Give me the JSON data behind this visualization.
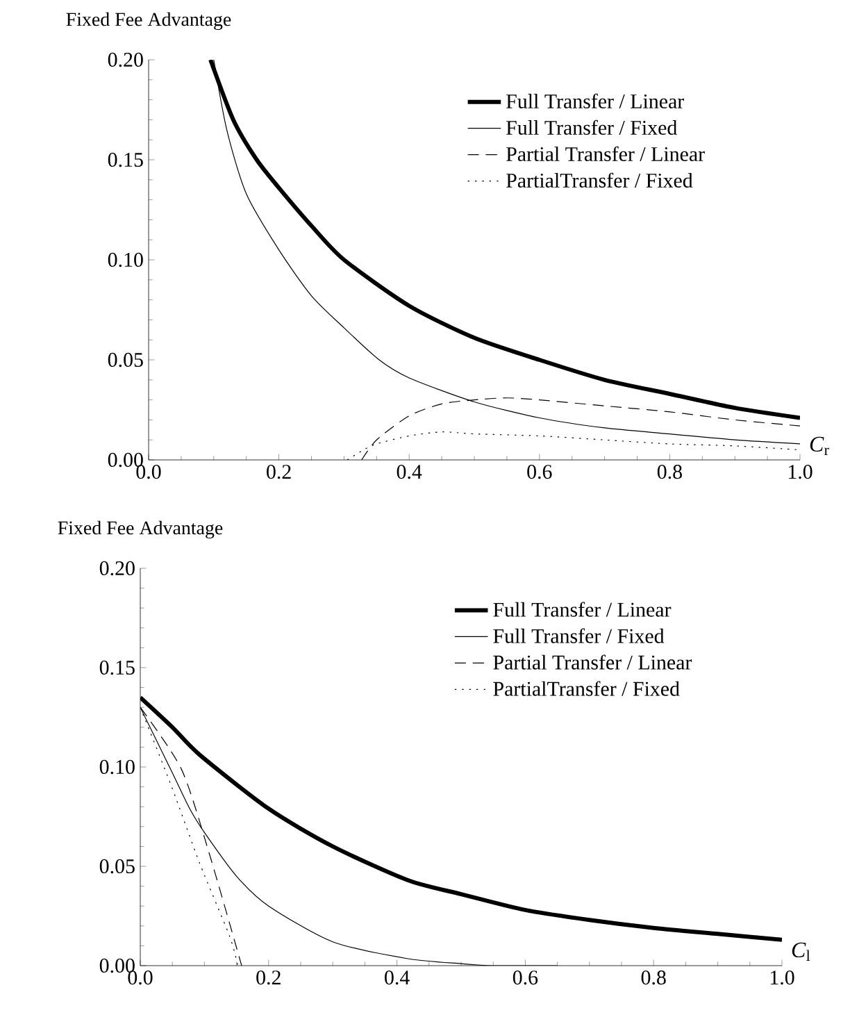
{
  "chart_data": [
    {
      "type": "line",
      "ylabel": "Fixed Fee Advantage",
      "xlabel": "*C*$_{r}$",
      "xlim": [
        0,
        1
      ],
      "ylim": [
        0,
        0.2
      ],
      "xticks": [
        {
          "value": 0,
          "label": "0.0"
        },
        {
          "value": 0.2,
          "label": "0.2"
        },
        {
          "value": 0.4,
          "label": "0.4"
        },
        {
          "value": 0.6,
          "label": "0.6"
        },
        {
          "value": 0.8,
          "label": "0.8"
        },
        {
          "value": 1,
          "label": "1.0"
        }
      ],
      "yticks": [
        {
          "value": 0,
          "label": "0.00"
        },
        {
          "value": 0.05,
          "label": "0.05"
        },
        {
          "value": 0.1,
          "label": "0.10"
        },
        {
          "value": 0.15,
          "label": "0.15"
        },
        {
          "value": 0.2,
          "label": "0.20"
        }
      ],
      "legend": "top right",
      "series": [
        {
          "name": "Full Transfer / Linear",
          "color": "#000000",
          "line_style": "solid",
          "x": [
            0.095,
            0.13,
            0.166,
            0.2,
            0.25,
            0.3,
            0.4,
            0.5,
            0.6,
            0.7,
            0.8,
            0.9,
            1.0
          ],
          "values": [
            0.2,
            0.17,
            0.15,
            0.136,
            0.117,
            0.1,
            0.077,
            0.061,
            0.05,
            0.04,
            0.033,
            0.026,
            0.021
          ]
        },
        {
          "name": "Full Transfer / Fixed",
          "color": "#000000",
          "line_style": "solid",
          "x": [
            0.1,
            0.12,
            0.15,
            0.2,
            0.25,
            0.3,
            0.354,
            0.4,
            0.5,
            0.6,
            0.7,
            0.8,
            0.9,
            1.0
          ],
          "values": [
            0.2,
            0.165,
            0.133,
            0.105,
            0.082,
            0.066,
            0.05,
            0.041,
            0.029,
            0.021,
            0.016,
            0.013,
            0.01,
            0.008
          ]
        },
        {
          "name": "Partial Transfer / Linear",
          "color": "#000000",
          "line_style": "dashed",
          "x": [
            0.327,
            0.35,
            0.4,
            0.45,
            0.5,
            0.55,
            0.6,
            0.7,
            0.8,
            0.9,
            1.0
          ],
          "values": [
            0.0,
            0.01,
            0.022,
            0.028,
            0.03,
            0.031,
            0.03,
            0.027,
            0.024,
            0.02,
            0.017
          ]
        },
        {
          "name": "PartialTransfer / Fixed",
          "color": "#000000",
          "line_style": "dotted",
          "x": [
            0.305,
            0.33,
            0.35,
            0.4,
            0.45,
            0.5,
            0.6,
            0.7,
            0.8,
            0.9,
            1.0
          ],
          "values": [
            0.0,
            0.005,
            0.008,
            0.012,
            0.014,
            0.013,
            0.012,
            0.01,
            0.008,
            0.007,
            0.005
          ]
        }
      ]
    },
    {
      "type": "line",
      "ylabel": "Fixed Fee Advantage",
      "xlabel": "*C*$_{l}$",
      "xlim": [
        0,
        1
      ],
      "ylim": [
        0,
        0.2
      ],
      "xticks": [
        {
          "value": 0,
          "label": "0.0"
        },
        {
          "value": 0.2,
          "label": "0.2"
        },
        {
          "value": 0.4,
          "label": "0.4"
        },
        {
          "value": 0.6,
          "label": "0.6"
        },
        {
          "value": 0.8,
          "label": "0.8"
        },
        {
          "value": 1,
          "label": "1.0"
        }
      ],
      "yticks": [
        {
          "value": 0,
          "label": "0.00"
        },
        {
          "value": 0.05,
          "label": "0.05"
        },
        {
          "value": 0.1,
          "label": "0.10"
        },
        {
          "value": 0.15,
          "label": "0.15"
        },
        {
          "value": 0.2,
          "label": "0.20"
        }
      ],
      "legend": "top right",
      "series": [
        {
          "name": "Full Transfer / Linear",
          "color": "#000000",
          "line_style": "solid",
          "x": [
            0.0,
            0.05,
            0.093,
            0.2,
            0.3,
            0.417,
            0.5,
            0.6,
            0.7,
            0.8,
            0.9,
            1.0
          ],
          "values": [
            0.135,
            0.12,
            0.106,
            0.079,
            0.06,
            0.043,
            0.036,
            0.028,
            0.023,
            0.019,
            0.016,
            0.013
          ]
        },
        {
          "name": "Full Transfer / Fixed",
          "color": "#000000",
          "line_style": "solid",
          "x": [
            0.0,
            0.05,
            0.077,
            0.1,
            0.15,
            0.2,
            0.3,
            0.417,
            0.5,
            0.55,
            0.65
          ],
          "values": [
            0.13,
            0.097,
            0.079,
            0.067,
            0.045,
            0.03,
            0.012,
            0.0035,
            0.001,
            0.0,
            0.0
          ]
        },
        {
          "name": "Partial Transfer / Linear",
          "color": "#000000",
          "line_style": "dashed",
          "x": [
            0.0,
            0.064,
            0.107,
            0.158
          ],
          "values": [
            0.13,
            0.099,
            0.057,
            0.0
          ]
        },
        {
          "name": "PartialTransfer / Fixed",
          "color": "#000000",
          "line_style": "dotted",
          "x": [
            0.0,
            0.049,
            0.092,
            0.139,
            0.152
          ],
          "values": [
            0.13,
            0.09,
            0.052,
            0.015,
            0.0
          ]
        }
      ]
    }
  ]
}
